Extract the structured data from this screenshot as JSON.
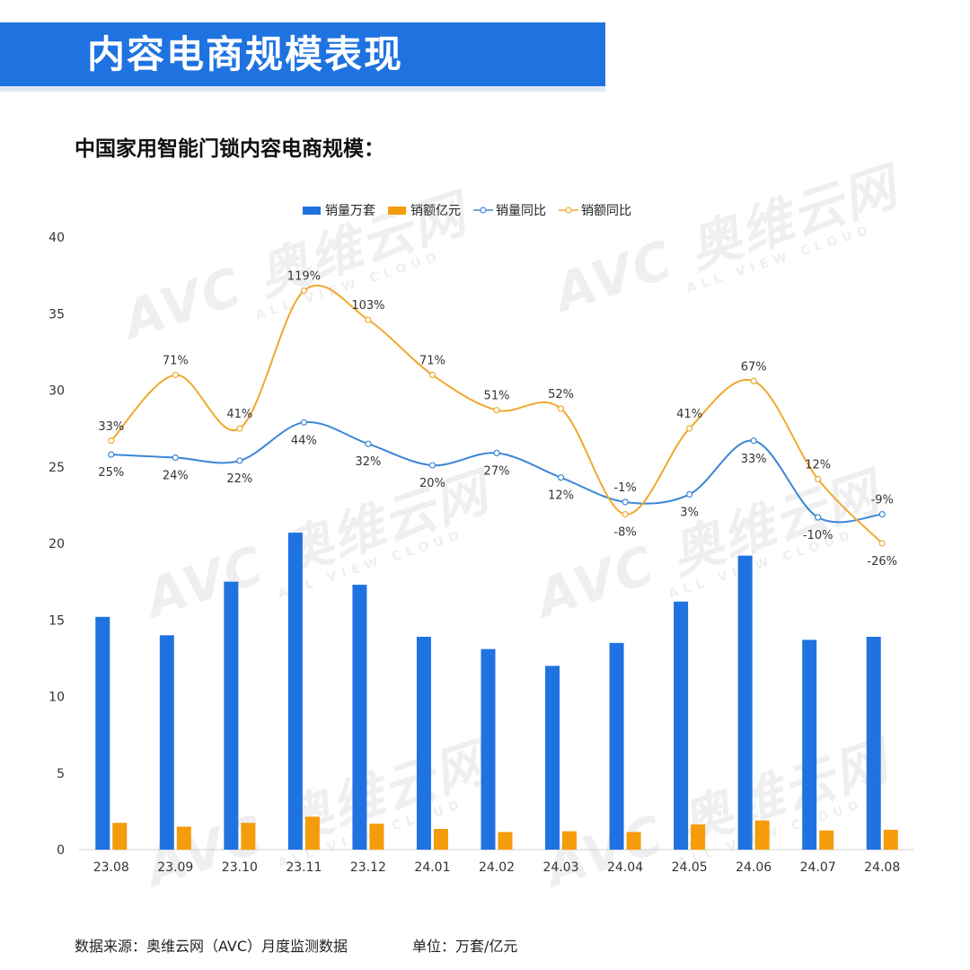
{
  "header": {
    "title": "内容电商规模表现"
  },
  "subtitle": "中国家用智能门锁内容电商规模：",
  "footer": {
    "source": "数据来源：奥维云网（AVC）月度监测数据",
    "unit": "单位：万套/亿元"
  },
  "watermark": {
    "logo": "AVC",
    "name": "奥维云网",
    "tagline": "ALL VIEW CLOUD"
  },
  "colors": {
    "blue": "#1f73e0",
    "orange": "#f59c0a",
    "blue_line": "#3b86d6",
    "orange_line": "#f0a830"
  },
  "chart_data": {
    "type": "bar",
    "categories": [
      "23.08",
      "23.09",
      "23.10",
      "23.11",
      "23.12",
      "24.01",
      "24.02",
      "24.03",
      "24.04",
      "24.05",
      "24.06",
      "24.07",
      "24.08"
    ],
    "ylim": [
      0,
      40
    ],
    "yticks": [
      0,
      5,
      10,
      15,
      20,
      25,
      30,
      35,
      40
    ],
    "legend_position": "top",
    "grid": false,
    "series": [
      {
        "name": "销量万套",
        "kind": "bar",
        "values": [
          15.2,
          14.0,
          17.5,
          20.7,
          17.3,
          13.9,
          13.1,
          12.0,
          13.5,
          16.2,
          19.2,
          13.7,
          13.9
        ]
      },
      {
        "name": "销额亿元",
        "kind": "bar",
        "values": [
          1.75,
          1.5,
          1.75,
          2.15,
          1.7,
          1.35,
          1.15,
          1.2,
          1.15,
          1.65,
          1.9,
          1.25,
          1.3
        ]
      },
      {
        "name": "销量同比",
        "kind": "line",
        "values": [
          25.8,
          25.6,
          25.4,
          27.9,
          26.5,
          25.1,
          25.9,
          24.3,
          22.7,
          23.2,
          26.7,
          21.7,
          21.9
        ],
        "labels": [
          "25%",
          "24%",
          "22%",
          "44%",
          "32%",
          "20%",
          "27%",
          "12%",
          "-1%",
          "3%",
          "33%",
          "-10%",
          "-9%"
        ]
      },
      {
        "name": "销额同比",
        "kind": "line",
        "values": [
          26.7,
          31.0,
          27.5,
          36.5,
          34.6,
          31.0,
          28.7,
          28.8,
          21.9,
          27.5,
          30.6,
          24.2,
          20.0
        ],
        "labels": [
          "33%",
          "71%",
          "41%",
          "119%",
          "103%",
          "71%",
          "51%",
          "52%",
          "-8%",
          "41%",
          "67%",
          "12%",
          "-26%"
        ]
      }
    ]
  }
}
